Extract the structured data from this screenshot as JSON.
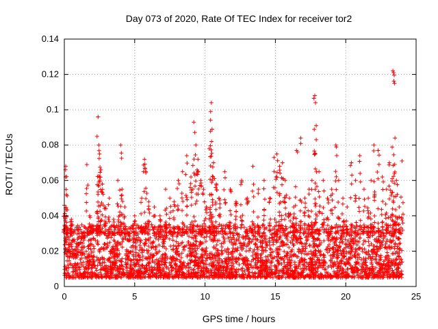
{
  "chart_data": {
    "type": "scatter",
    "title": "Day 073 of 2020, Rate Of TEC Index for receiver tor2",
    "xlabel": "GPS time / hours",
    "ylabel": "ROTI / TECUs",
    "xlim": [
      0,
      25
    ],
    "ylim": [
      0,
      0.14
    ],
    "xticks": [
      0,
      5,
      10,
      15,
      20,
      25
    ],
    "xtick_labels": [
      "0",
      "5",
      "10",
      "15",
      "20",
      "25"
    ],
    "yticks": [
      0,
      0.02,
      0.04,
      0.06,
      0.08,
      0.1,
      0.12,
      0.14
    ],
    "ytick_labels": [
      "0",
      "0.02",
      "0.04",
      "0.06",
      "0.08",
      "0.1",
      "0.12",
      "0.14"
    ],
    "grid": true,
    "marker": "+",
    "series": [
      {
        "name": "ROTI",
        "color": "#ff0000",
        "x": [
          0.0,
          0.1,
          0.15,
          0.2,
          0.3,
          0.5,
          0.8,
          1.0,
          1.4,
          1.6,
          1.8,
          2.0,
          2.3,
          2.4,
          2.45,
          2.5,
          2.6,
          2.7,
          2.9,
          3.2,
          3.5,
          3.8,
          4.0,
          4.1,
          4.3,
          4.6,
          5.0,
          5.5,
          5.7,
          5.8,
          6.0,
          6.4,
          6.8,
          7.2,
          7.5,
          7.8,
          8.1,
          8.4,
          8.7,
          9.0,
          9.2,
          9.35,
          9.5,
          9.7,
          9.9,
          10.1,
          10.3,
          10.4,
          10.45,
          10.5,
          10.6,
          10.8,
          11.0,
          11.4,
          11.8,
          12.2,
          12.6,
          13.0,
          13.4,
          13.8,
          14.2,
          14.6,
          14.9,
          15.1,
          15.3,
          15.5,
          15.7,
          16.0,
          16.3,
          16.5,
          16.8,
          17.1,
          17.4,
          17.6,
          17.8,
          17.85,
          17.9,
          18.1,
          18.4,
          18.7,
          19.0,
          19.3,
          19.5,
          19.8,
          20.1,
          20.4,
          20.7,
          21.0,
          21.3,
          21.6,
          21.8,
          22.0,
          22.3,
          22.6,
          22.9,
          23.1,
          23.3,
          23.35,
          23.4,
          23.5,
          23.6,
          23.8,
          24.0
        ],
        "values": [
          0.046,
          0.068,
          0.052,
          0.03,
          0.02,
          0.038,
          0.018,
          0.024,
          0.028,
          0.069,
          0.04,
          0.034,
          0.042,
          0.096,
          0.08,
          0.075,
          0.066,
          0.058,
          0.045,
          0.05,
          0.038,
          0.06,
          0.08,
          0.055,
          0.045,
          0.03,
          0.04,
          0.05,
          0.072,
          0.065,
          0.048,
          0.045,
          0.04,
          0.055,
          0.05,
          0.048,
          0.06,
          0.065,
          0.074,
          0.062,
          0.093,
          0.08,
          0.072,
          0.06,
          0.055,
          0.045,
          0.078,
          0.099,
          0.104,
          0.089,
          0.07,
          0.058,
          0.05,
          0.065,
          0.055,
          0.048,
          0.06,
          0.05,
          0.068,
          0.055,
          0.06,
          0.05,
          0.073,
          0.075,
          0.068,
          0.07,
          0.06,
          0.05,
          0.045,
          0.077,
          0.084,
          0.05,
          0.055,
          0.06,
          0.108,
          0.104,
          0.091,
          0.065,
          0.06,
          0.05,
          0.055,
          0.08,
          0.06,
          0.05,
          0.045,
          0.07,
          0.06,
          0.074,
          0.055,
          0.05,
          0.06,
          0.08,
          0.077,
          0.062,
          0.055,
          0.07,
          0.061,
          0.122,
          0.121,
          0.084,
          0.06,
          0.045,
          0.071
        ]
      }
    ],
    "background_band": {
      "x_range": [
        0.0,
        24.0
      ],
      "y_range": [
        0.005,
        0.035
      ],
      "description_density": "dense"
    }
  }
}
